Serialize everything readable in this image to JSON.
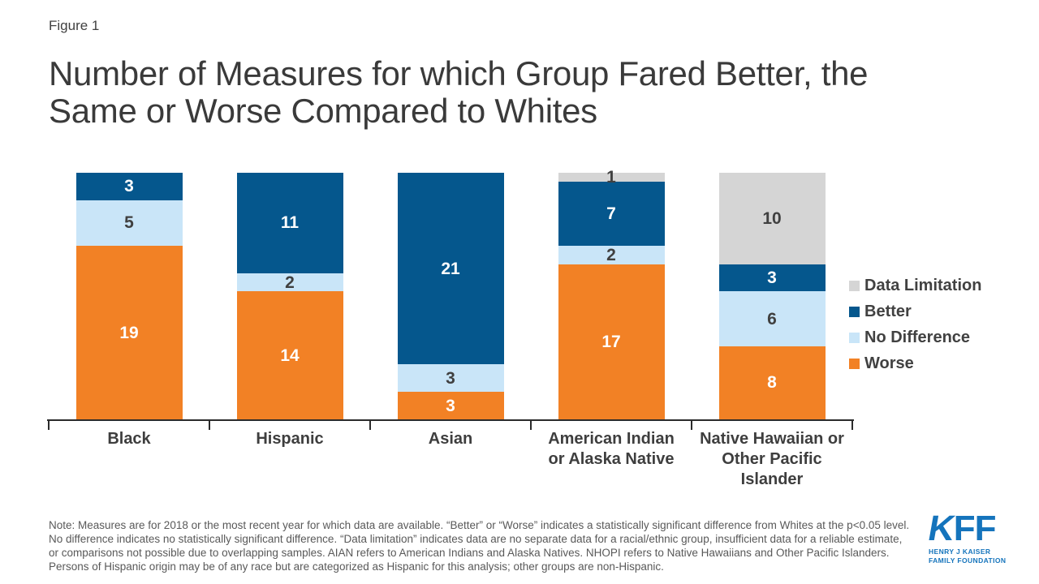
{
  "figure_label": "Figure 1",
  "title": "Number of Measures for which Group Fared Better, the Same or Worse Compared to Whites",
  "chart_data": {
    "type": "bar",
    "stacked": true,
    "title": "Number of Measures for which Group Fared Better, the Same or Worse Compared to Whites",
    "xlabel": "",
    "ylabel": "",
    "ylim": [
      0,
      27
    ],
    "grid": false,
    "legend_position": "right",
    "categories": [
      {
        "label": "Black",
        "lines": [
          "Black"
        ]
      },
      {
        "label": "Hispanic",
        "lines": [
          "Hispanic"
        ]
      },
      {
        "label": "Asian",
        "lines": [
          "Asian"
        ]
      },
      {
        "label": "American Indian or Alaska Native",
        "lines": [
          "American Indian",
          "or Alaska Native"
        ]
      },
      {
        "label": "Native Hawaiian or Other Pacific Islander",
        "lines": [
          "Native Hawaiian or",
          "Other Pacific",
          "Islander"
        ]
      }
    ],
    "series": [
      {
        "name": "Worse",
        "color": "#F28125",
        "value_label_color": "#FFFFFF",
        "values": [
          19,
          14,
          3,
          17,
          8
        ]
      },
      {
        "name": "No Difference",
        "color": "#C9E5F8",
        "value_label_color": "#404040",
        "values": [
          5,
          2,
          3,
          2,
          6
        ]
      },
      {
        "name": "Better",
        "color": "#05578D",
        "value_label_color": "#FFFFFF",
        "values": [
          3,
          11,
          21,
          7,
          3
        ]
      },
      {
        "name": "Data Limitation",
        "color": "#D5D5D5",
        "value_label_color": "#404040",
        "values": [
          0,
          0,
          0,
          1,
          10
        ]
      }
    ],
    "legend_items": [
      "Data Limitation",
      "Better",
      "No Difference",
      "Worse"
    ]
  },
  "note": "Note: Measures are for 2018 or the most recent year for which data are available. “Better” or “Worse” indicates a statistically significant difference from Whites at the p<0.05 level. No difference indicates no statistically significant difference. “Data limitation” indicates data are no separate data for a racial/ethnic group, insufficient data for a reliable estimate, or comparisons not possible due to overlapping samples. AIAN refers to American Indians and Alaska Natives. NHOPI refers to Native Hawaiians and Other Pacific Islanders. Persons of Hispanic origin may be of any race but are categorized as Hispanic for this analysis; other groups are non-Hispanic.",
  "logo": {
    "k": "K",
    "ff": "FF",
    "line1": "HENRY J KAISER",
    "line2": "FAMILY FOUNDATION"
  }
}
